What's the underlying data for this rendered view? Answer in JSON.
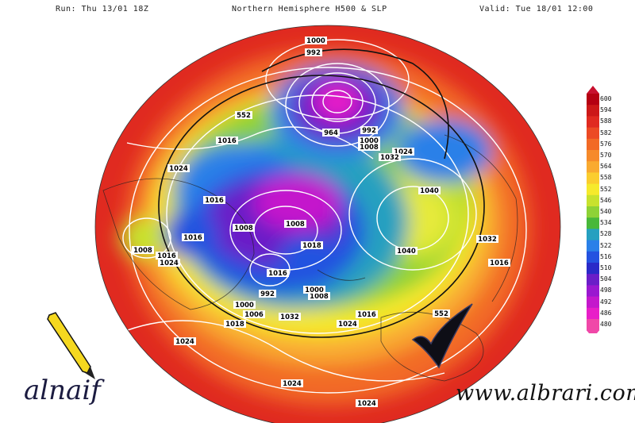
{
  "header": {
    "run": "Run: Thu 13/01 18Z",
    "title": "Northern Hemisphere H500 & SLP",
    "valid": "Valid: Tue 18/01 12:00"
  },
  "legend": {
    "values": [
      "600",
      "594",
      "588",
      "582",
      "576",
      "570",
      "564",
      "558",
      "552",
      "546",
      "540",
      "534",
      "528",
      "522",
      "516",
      "510",
      "504",
      "498",
      "492",
      "486",
      "480"
    ],
    "colors": [
      "#b50012",
      "#cc1818",
      "#e02a20",
      "#ec4a24",
      "#f26a26",
      "#f68a2a",
      "#f9aa30",
      "#fbcd2e",
      "#f6ea2c",
      "#c8e22e",
      "#8ed236",
      "#48b83a",
      "#26a0c0",
      "#2a80e8",
      "#2452e0",
      "#2a2ac8",
      "#6a1ec8",
      "#9a18d0",
      "#c418cc",
      "#e81ec8",
      "#f048a8"
    ],
    "arrow_color": "#c8102e"
  },
  "contours": [
    {
      "label": "1000"
    },
    {
      "label": "992"
    },
    {
      "label": "552"
    },
    {
      "label": "1016"
    },
    {
      "label": "1024"
    },
    {
      "label": "1016"
    },
    {
      "label": "1008"
    },
    {
      "label": "1008"
    },
    {
      "label": "1016"
    },
    {
      "label": "1024"
    },
    {
      "label": "1016"
    },
    {
      "label": "1008"
    },
    {
      "label": "1018"
    },
    {
      "label": "1016"
    },
    {
      "label": "992"
    },
    {
      "label": "1000"
    },
    {
      "label": "1006"
    },
    {
      "label": "1018"
    },
    {
      "label": "1032"
    },
    {
      "label": "1024"
    },
    {
      "label": "1024"
    },
    {
      "label": "1024"
    },
    {
      "label": "1024"
    },
    {
      "label": "964"
    },
    {
      "label": "992"
    },
    {
      "label": "1000"
    },
    {
      "label": "1008"
    },
    {
      "label": "1024"
    },
    {
      "label": "1032"
    },
    {
      "label": "1040"
    },
    {
      "label": "1040"
    },
    {
      "label": "1032"
    },
    {
      "label": "1016"
    },
    {
      "label": "552"
    },
    {
      "label": "1016"
    },
    {
      "label": "1008"
    },
    {
      "label": "1000"
    }
  ],
  "watermark": {
    "brand": "alnaif",
    "site": "www.albrari.com"
  }
}
